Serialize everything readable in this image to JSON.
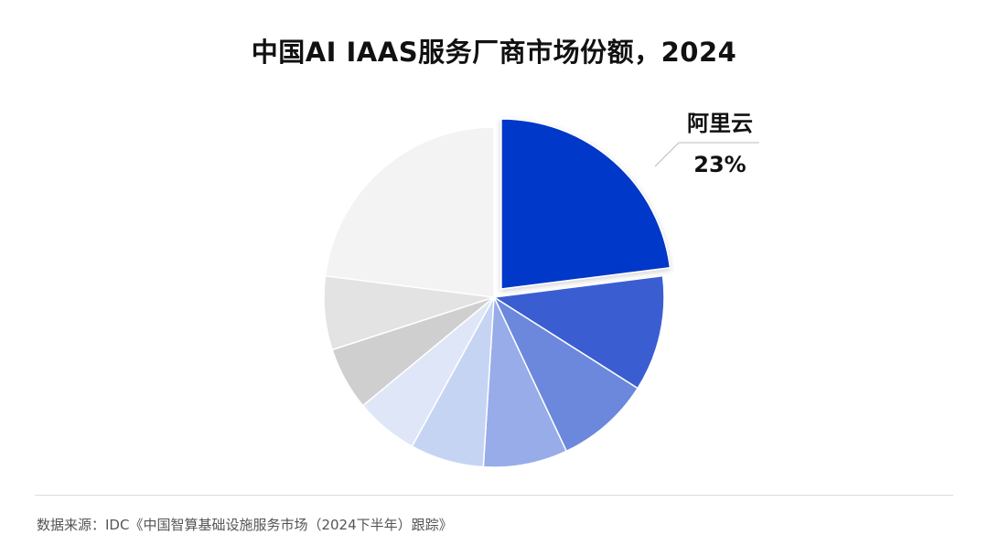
{
  "title": "中国AI IAAS服务厂商市场份额，2024",
  "source": "数据来源：IDC《中国智算基础设施服务市场（2024下半年）跟踪》",
  "colors": {
    "highlight": "#0637c9"
  },
  "chart_data": {
    "type": "pie",
    "title": "中国AI IAAS服务厂商市场份额，2024",
    "slices": [
      {
        "label": "阿里云",
        "value": 23,
        "value_label": "23%",
        "color": "#0637c9",
        "exploded": true
      },
      {
        "value": 11,
        "color": "#3a5ed2"
      },
      {
        "value": 9,
        "color": "#6c88dc"
      },
      {
        "value": 8,
        "color": "#97ace8"
      },
      {
        "value": 7,
        "color": "#c6d4f4"
      },
      {
        "value": 6,
        "color": "#dee6f7"
      },
      {
        "value": 6,
        "color": "#cfcfcf"
      },
      {
        "value": 7,
        "color": "#e3e3e3"
      },
      {
        "value": 23,
        "color": "#f3f3f3"
      }
    ],
    "start_angle_deg": 0,
    "direction": "clockwise",
    "legend": "none"
  }
}
